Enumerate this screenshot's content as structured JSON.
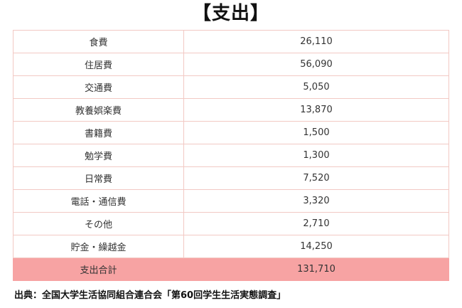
{
  "title": "【支出】",
  "rows": [
    {
      "category": "食費",
      "amount": "26,110"
    },
    {
      "category": "住居費",
      "amount": "56,090"
    },
    {
      "category": "交通費",
      "amount": "5,050"
    },
    {
      "category": "教養娯楽費",
      "amount": "13,870"
    },
    {
      "category": "書籍費",
      "amount": "1,500"
    },
    {
      "category": "勉学費",
      "amount": "1,300"
    },
    {
      "category": "日常費",
      "amount": "7,520"
    },
    {
      "category": "電話・通信費",
      "amount": "3,320"
    },
    {
      "category": "その他",
      "amount": "2,710"
    },
    {
      "category": "貯金・繰越金",
      "amount": "14,250"
    }
  ],
  "total": {
    "category": "支出合計",
    "amount": "131,710"
  },
  "source": "出典：全国大学生活協同組合連合会「第60回学生生活実態調査」",
  "colors": {
    "border": "#f2c9c4",
    "total_background": "#f7a3a3"
  }
}
